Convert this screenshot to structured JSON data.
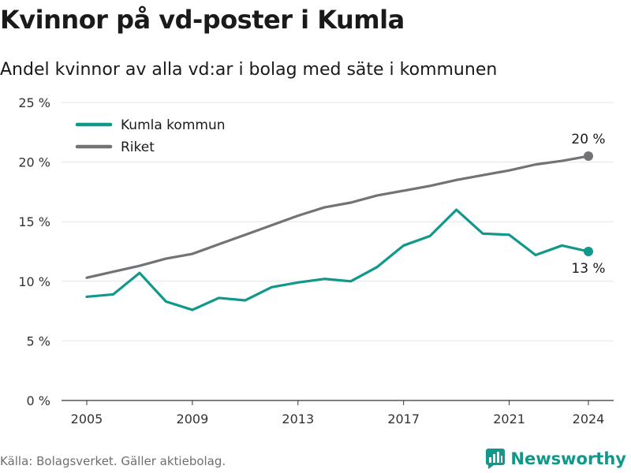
{
  "header": {
    "title": "Kvinnor på vd-poster i Kumla",
    "subtitle": "Andel kvinnor av alla vd:ar i bolag med säte i kommunen"
  },
  "footer": {
    "source": "Källa: Bolagsverket. Gäller aktiebolag.",
    "brand": "Newsworthy"
  },
  "colors": {
    "kumla": "#10988b",
    "riket": "#737277",
    "grid": "#e4e4e4",
    "brand": "#10988b"
  },
  "chart_data": {
    "type": "line",
    "title": "Kvinnor på vd-poster i Kumla",
    "subtitle": "Andel kvinnor av alla vd:ar i bolag med säte i kommunen",
    "xlabel": "",
    "ylabel": "",
    "x": [
      2005,
      2006,
      2007,
      2008,
      2009,
      2010,
      2011,
      2012,
      2013,
      2014,
      2015,
      2016,
      2017,
      2018,
      2019,
      2020,
      2021,
      2022,
      2023,
      2024
    ],
    "xticks": [
      "2005",
      "2009",
      "2013",
      "2017",
      "2021",
      "2024"
    ],
    "ylim": [
      0,
      25
    ],
    "yticks": [
      "0 %",
      "5 %",
      "10 %",
      "15 %",
      "20 %",
      "25 %"
    ],
    "grid": "horizontal",
    "legend_position": "top-left",
    "series": [
      {
        "name": "Kumla kommun",
        "color": "#10988b",
        "values": [
          8.7,
          8.9,
          10.7,
          8.3,
          7.6,
          8.6,
          8.4,
          9.5,
          9.9,
          10.2,
          10.0,
          11.2,
          13.0,
          13.8,
          16.0,
          14.0,
          13.9,
          12.2,
          13.0,
          12.5
        ],
        "end_label": "13 %"
      },
      {
        "name": "Riket",
        "color": "#737277",
        "values": [
          10.3,
          10.8,
          11.3,
          11.9,
          12.3,
          13.1,
          13.9,
          14.7,
          15.5,
          16.2,
          16.6,
          17.2,
          17.6,
          18.0,
          18.5,
          18.9,
          19.3,
          19.8,
          20.1,
          20.5
        ],
        "end_label": "20 %"
      }
    ]
  }
}
